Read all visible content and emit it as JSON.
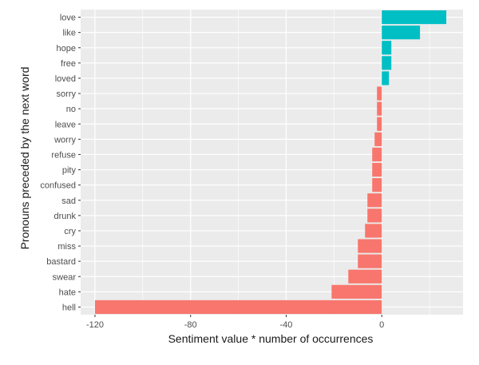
{
  "chart_data": {
    "type": "bar",
    "orientation": "horizontal",
    "categories": [
      "love",
      "like",
      "hope",
      "free",
      "loved",
      "sorry",
      "no",
      "leave",
      "worry",
      "refuse",
      "pity",
      "confused",
      "sad",
      "drunk",
      "cry",
      "miss",
      "bastard",
      "swear",
      "hate",
      "hell"
    ],
    "values": [
      27,
      16,
      4,
      4,
      3,
      -2,
      -2,
      -2,
      -3,
      -4,
      -4,
      -4,
      -6,
      -6,
      -7,
      -10,
      -10,
      -14,
      -21,
      -120
    ],
    "xlabel": "Sentiment value * number of occurrences",
    "ylabel": "Pronouns preceded by the next word",
    "xlim": [
      -126,
      34
    ],
    "xticks": [
      -120,
      -80,
      -40,
      0
    ],
    "xtick_labels": [
      "-120",
      "-80",
      "-40",
      "0"
    ],
    "grid": true,
    "colors": {
      "positive": "#00BFC4",
      "negative": "#F8766D",
      "panel": "#EBEBEB",
      "gridline": "#FFFFFF"
    }
  }
}
